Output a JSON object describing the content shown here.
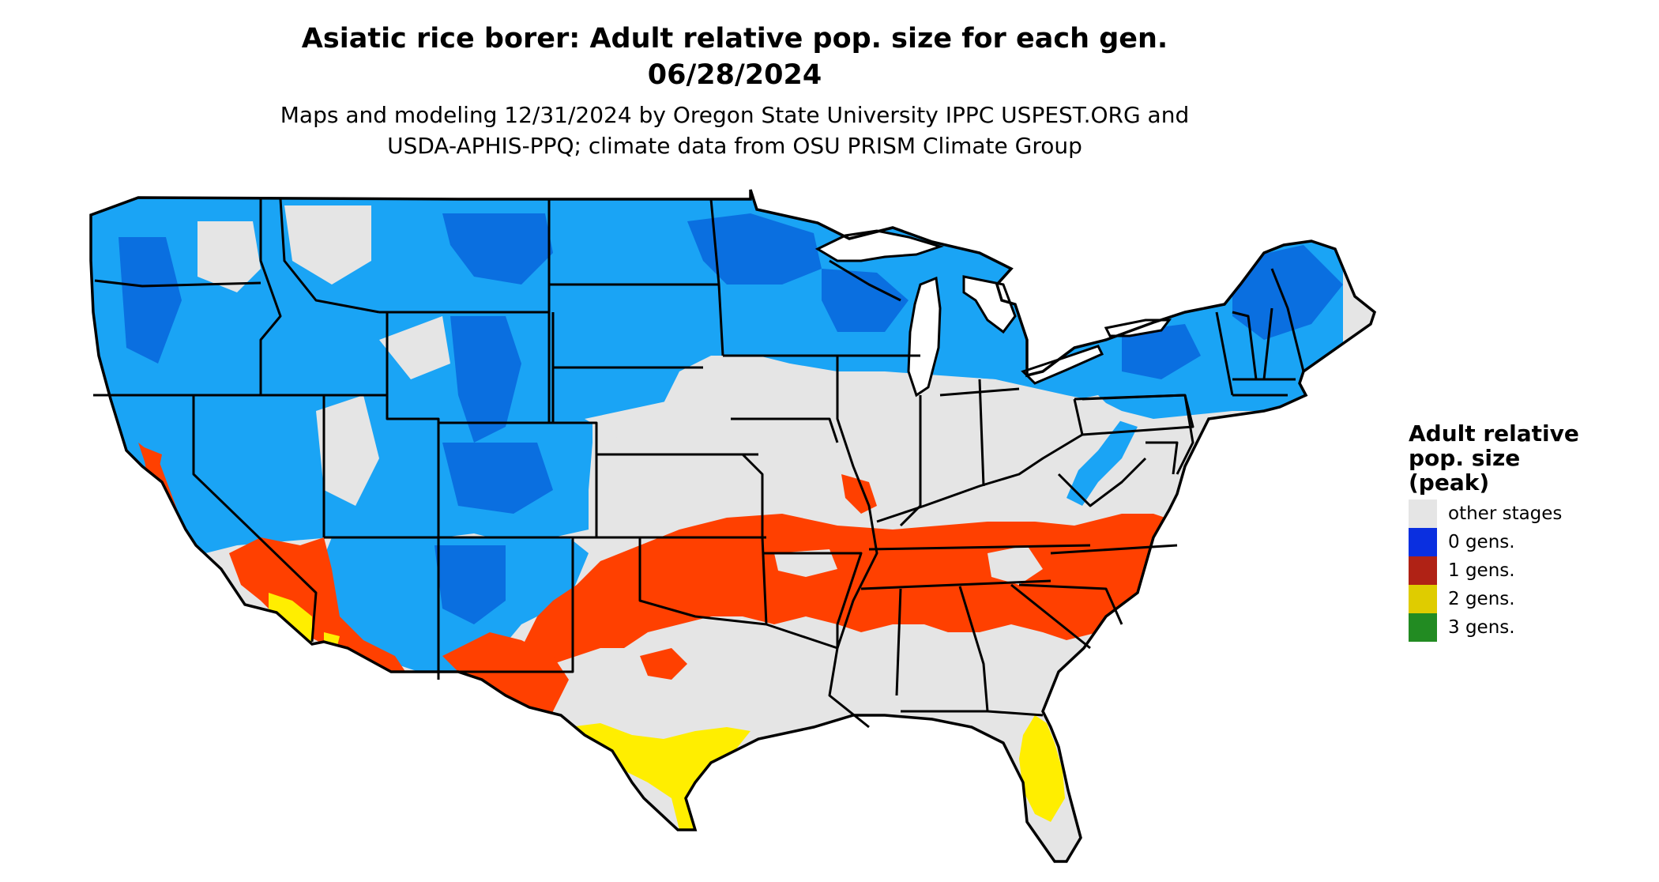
{
  "title_line1": "Asiatic rice borer: Adult relative pop. size for each gen.",
  "title_line2": "06/28/2024",
  "subtitle_line1": "Maps and modeling 12/31/2024 by Oregon State University IPPC USPEST.ORG and",
  "subtitle_line2": "USDA-APHIS-PPQ; climate data from OSU PRISM Climate Group",
  "legend": {
    "title_line1": "Adult relative",
    "title_line2": "pop. size",
    "title_line3": "(peak)",
    "items": [
      {
        "label": "other stages",
        "color": "#e5e5e5"
      },
      {
        "label": "0 gens.",
        "color": "#0a2fe0"
      },
      {
        "label": "1 gens.",
        "color": "#b02215"
      },
      {
        "label": "2 gens.",
        "color": "#dfcc00"
      },
      {
        "label": "3 gens.",
        "color": "#228b22"
      }
    ]
  },
  "map_colors": {
    "background": "#e5e5e5",
    "cold_light": "#1aa4f5",
    "cold_dark": "#0a6fe0",
    "one_gen": "#ff4000",
    "two_gen": "#ffee00",
    "three_gen": "#44dd44",
    "border": "#000000"
  }
}
